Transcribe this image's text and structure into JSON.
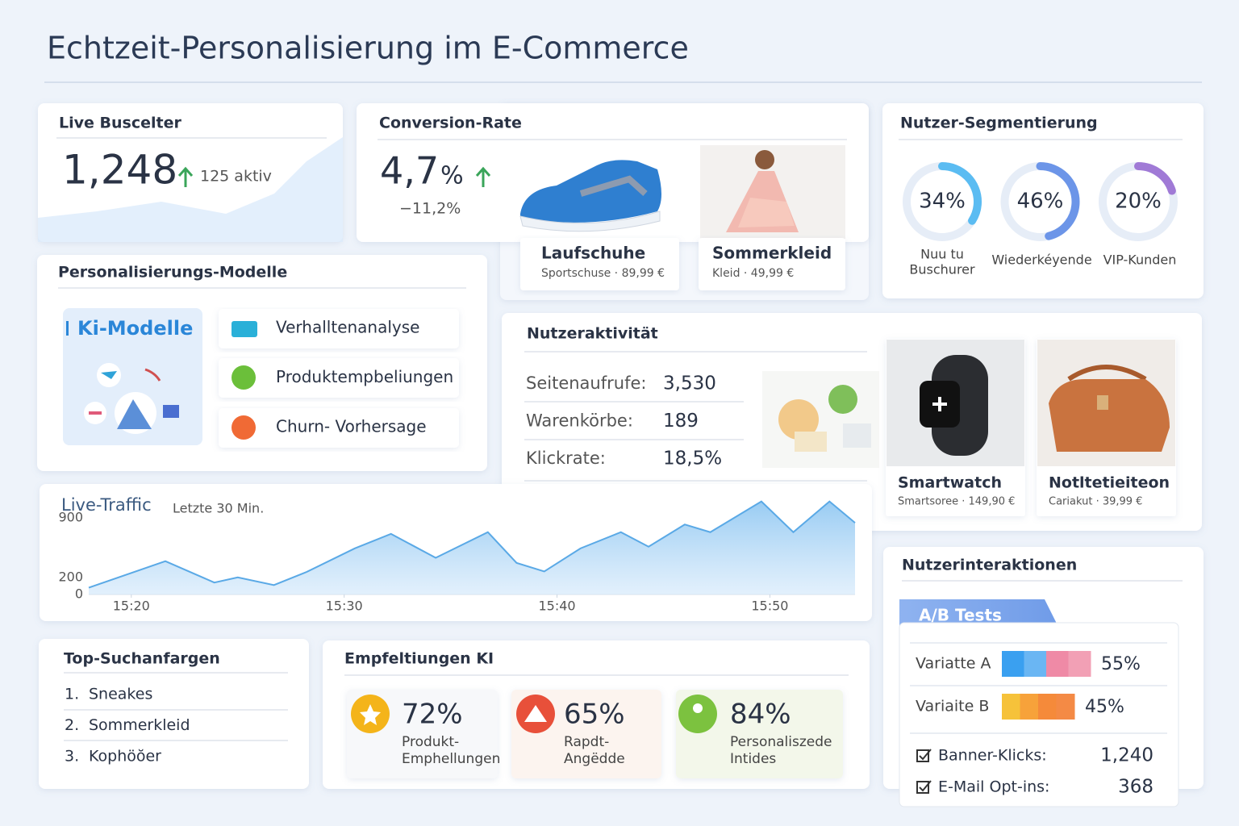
{
  "header": {
    "title": "Echtzeit-Personalisierung im E-Commerce"
  },
  "live_visitors": {
    "title": "Live Buscelter",
    "value": "1,248",
    "active": "125 aktiv"
  },
  "conversion": {
    "title": "Conversion-Rate",
    "value": "4,7",
    "unit": "%",
    "change": "−11,2%",
    "products": [
      {
        "name": "Laufschuhe",
        "detail": "Sportschuse · 89,99 €"
      },
      {
        "name": "Sommerkleid",
        "detail": "Kleid · 49,99 €"
      }
    ]
  },
  "segmentation": {
    "title": "Nutzer-Segmentierung",
    "segments": [
      {
        "value": 34,
        "value_label": "34%",
        "label": [
          "Nuu tu",
          "Buschurer"
        ],
        "color": "#5bbcf2"
      },
      {
        "value": 46,
        "value_label": "46%",
        "label": [
          "Wiederkéyende"
        ],
        "color": "#6c95e8"
      },
      {
        "value": 20,
        "value_label": "20%",
        "label": [
          "VIP-Kunden"
        ],
        "color": "#a07ad6"
      }
    ]
  },
  "models": {
    "title": "Personalisierungs-Modelle",
    "box": "Ki-Modelle",
    "items": [
      "Verhalltenanalyse",
      "Produktempbeliungen",
      "Churn- Vorhersage"
    ]
  },
  "activity": {
    "title": "Nutzeraktivität",
    "rows": [
      [
        "Seitenaufrufe:",
        "3,530"
      ],
      [
        "Warenkörbe:",
        "189"
      ],
      [
        "Klickrate:",
        "18,5%"
      ]
    ],
    "products": [
      {
        "name": "Smartwatch",
        "detail": "Smartsoree · 149,90 €"
      },
      {
        "name": "Notltetieiteon",
        "detail": "Cariakut · 39,99 €"
      }
    ]
  },
  "chart_data": {
    "type": "area",
    "title": "Live-Traffic",
    "subtitle": "Letzte 30 Min.",
    "x": [
      18,
      21.6,
      23.9,
      25,
      26.7,
      28.2,
      30.5,
      32.2,
      34.3,
      36.75,
      38.1,
      39.4,
      41.1,
      43,
      44.3,
      46,
      47.2,
      49.6,
      51.1,
      52.8,
      54
    ],
    "series": [
      {
        "color": "#5aa9e6",
        "values": [
          80,
          390,
          140,
          200,
          110,
          260,
          540,
          710,
          430,
          730,
          370,
          270,
          540,
          730,
          560,
          820,
          730,
          1090,
          730,
          1090,
          840
        ]
      }
    ],
    "xlim": [
      18,
      54
    ],
    "xticks": [
      {
        "value": 20,
        "label": "15:20"
      },
      {
        "value": 30,
        "label": "15:30"
      },
      {
        "value": 40,
        "label": "15:40"
      },
      {
        "value": 50,
        "label": "15:50"
      }
    ],
    "ylim": [
      0,
      1200
    ],
    "yticks": [
      0,
      200,
      900
    ]
  },
  "searches": {
    "title": "Top-Suchanfargen",
    "items": [
      [
        "1.",
        "Sneakes"
      ],
      [
        "2.",
        "Sommerkleid"
      ],
      [
        "3.",
        "Kophöŏer"
      ]
    ]
  },
  "recommendations": {
    "title": "Empfeltiungen KI",
    "cards": [
      {
        "value": "72%",
        "label": [
          "Produkt-",
          "Emphellungen"
        ]
      },
      {
        "value": "65%",
        "label": [
          "Rapdt-",
          "Angëdde"
        ]
      },
      {
        "value": "84%",
        "label": [
          "Personaliszede",
          "Intides"
        ]
      }
    ]
  },
  "interactions": {
    "title": "Nutzerinteraktionen",
    "tab": "A/B Tests",
    "variants": [
      {
        "name": "Variatte A",
        "value": 55,
        "value_label": "55%"
      },
      {
        "name": "Variaite B",
        "value": 45,
        "value_label": "45%"
      }
    ],
    "metrics": [
      [
        "Banner-Klicks:",
        "1,240"
      ],
      [
        "E-Mail Opt-ins:",
        "368"
      ]
    ]
  }
}
